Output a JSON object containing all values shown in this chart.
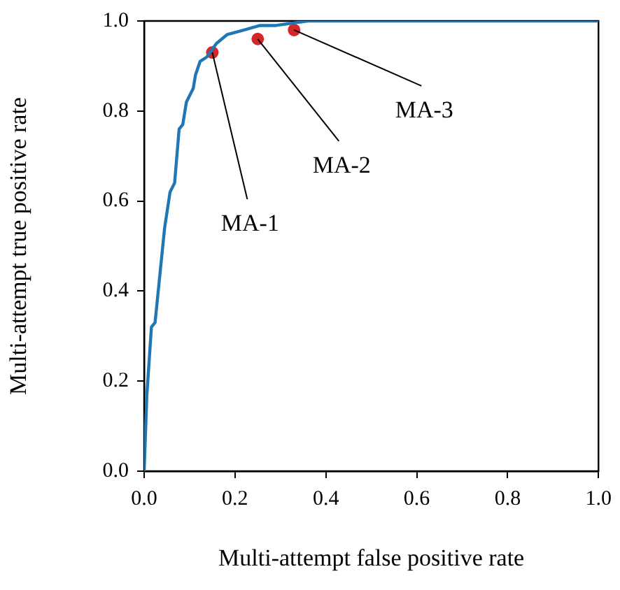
{
  "chart_data": {
    "type": "line",
    "xlabel": "Multi-attempt false positive rate",
    "ylabel": "Multi-attempt true positive rate",
    "xlim": [
      0,
      1
    ],
    "ylim": [
      0,
      1
    ],
    "xticks": [
      {
        "value": 0,
        "label": "0.0"
      },
      {
        "value": 0.2,
        "label": "0.2"
      },
      {
        "value": 0.4,
        "label": "0.4"
      },
      {
        "value": 0.6,
        "label": "0.6"
      },
      {
        "value": 0.8,
        "label": "0.8"
      },
      {
        "value": 1,
        "label": "1.0"
      }
    ],
    "yticks": [
      {
        "value": 0,
        "label": "0.0"
      },
      {
        "value": 0.2,
        "label": "0.2"
      },
      {
        "value": 0.4,
        "label": "0.4"
      },
      {
        "value": 0.6,
        "label": "0.6"
      },
      {
        "value": 0.8,
        "label": "0.8"
      },
      {
        "value": 1,
        "label": "1.0"
      }
    ],
    "grid": false,
    "legend": false,
    "series": [
      {
        "type": "line",
        "color": "#1f77b4",
        "marker": "none",
        "x": [
          0,
          0.006,
          0.016,
          0.024,
          0.031,
          0.045,
          0.057,
          0.067,
          0.077,
          0.085,
          0.093,
          0.108,
          0.113,
          0.123,
          0.138,
          0.159,
          0.183,
          0.22,
          0.255,
          0.29,
          0.36,
          1
        ],
        "values": [
          0,
          0.17,
          0.32,
          0.33,
          0.4,
          0.54,
          0.62,
          0.64,
          0.76,
          0.77,
          0.82,
          0.85,
          0.88,
          0.91,
          0.92,
          0.95,
          0.97,
          0.98,
          0.99,
          0.99,
          1,
          1
        ]
      },
      {
        "type": "scatter",
        "color": "#d62728",
        "marker": "circle",
        "x": [
          0.15,
          0.25,
          0.33
        ],
        "values": [
          0.93,
          0.96,
          0.98
        ]
      }
    ],
    "annotations": [
      {
        "text": "MA-1",
        "x": 0.15,
        "y": 0.93
      },
      {
        "text": "MA-2",
        "x": 0.25,
        "y": 0.96
      },
      {
        "text": "MA-3",
        "x": 0.33,
        "y": 0.98
      }
    ]
  }
}
